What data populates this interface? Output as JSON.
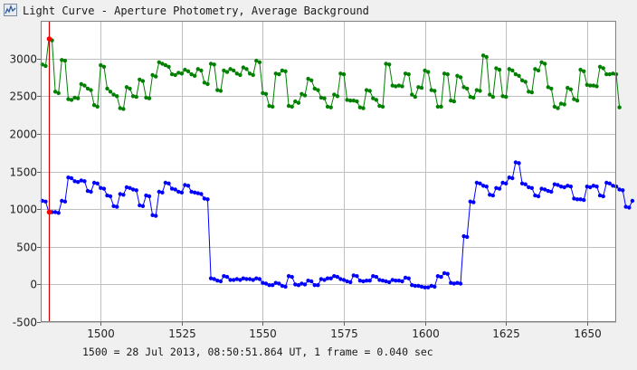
{
  "window": {
    "title": "Light Curve - Aperture Photometry, Average Background",
    "icon": "light-curve-app-icon"
  },
  "footer": {
    "note": "1500 = 28 Jul 2013, 08:50:51.864 UT, 1 frame = 0.040 sec"
  },
  "colors": {
    "background": "#f0f0f0",
    "plot_background": "#ffffff",
    "grid": "#c0c0c0",
    "series_top": "#008000",
    "series_bottom": "#0000ff",
    "cursor_line": "#cc0000",
    "cursor_marker": "#ff0000"
  },
  "chart_data": {
    "type": "line",
    "title": "Light Curve - Aperture Photometry, Average Background",
    "xlabel": "",
    "ylabel": "",
    "xlim": [
      1481.5,
      1659
    ],
    "ylim": [
      -500,
      3500
    ],
    "grid": true,
    "legend": "none",
    "x_ticks": [
      1500,
      1525,
      1550,
      1575,
      1600,
      1625,
      1650
    ],
    "y_ticks": [
      -500,
      0,
      500,
      1000,
      1500,
      2000,
      2500,
      3000
    ],
    "cursor": {
      "x": 1484,
      "values": [
        3260,
        960
      ]
    },
    "series": [
      {
        "color": "#008000",
        "x_start": 1482,
        "x_step": 1,
        "values": [
          2920,
          2900,
          3260,
          3240,
          2560,
          2540,
          2980,
          2970,
          2460,
          2450,
          2480,
          2470,
          2660,
          2640,
          2600,
          2580,
          2380,
          2360,
          2910,
          2890,
          2600,
          2560,
          2520,
          2500,
          2340,
          2330,
          2620,
          2600,
          2500,
          2490,
          2720,
          2700,
          2480,
          2470,
          2780,
          2760,
          2950,
          2930,
          2910,
          2890,
          2790,
          2780,
          2810,
          2800,
          2850,
          2830,
          2790,
          2770,
          2860,
          2840,
          2680,
          2660,
          2930,
          2920,
          2580,
          2570,
          2840,
          2820,
          2860,
          2840,
          2800,
          2780,
          2880,
          2860,
          2800,
          2780,
          2970,
          2950,
          2540,
          2530,
          2370,
          2360,
          2800,
          2790,
          2840,
          2830,
          2370,
          2360,
          2430,
          2410,
          2530,
          2510,
          2730,
          2710,
          2600,
          2580,
          2480,
          2470,
          2360,
          2350,
          2520,
          2500,
          2800,
          2790,
          2450,
          2440,
          2440,
          2430,
          2350,
          2340,
          2580,
          2570,
          2470,
          2450,
          2370,
          2360,
          2930,
          2920,
          2640,
          2630,
          2640,
          2630,
          2800,
          2790,
          2520,
          2490,
          2620,
          2610,
          2840,
          2820,
          2580,
          2570,
          2360,
          2360,
          2800,
          2790,
          2440,
          2430,
          2770,
          2750,
          2620,
          2600,
          2490,
          2480,
          2580,
          2570,
          3040,
          3020,
          2520,
          2490,
          2870,
          2850,
          2500,
          2490,
          2860,
          2840,
          2790,
          2770,
          2710,
          2690,
          2560,
          2550,
          2860,
          2840,
          2950,
          2930,
          2620,
          2600,
          2360,
          2340,
          2400,
          2390,
          2610,
          2590,
          2460,
          2440,
          2850,
          2830,
          2650,
          2640,
          2640,
          2630,
          2890,
          2870,
          2790,
          2790,
          2800,
          2790,
          2350
        ]
      },
      {
        "color": "#0000ff",
        "x_start": 1482,
        "x_step": 1,
        "values": [
          1110,
          1100,
          960,
          960,
          960,
          950,
          1110,
          1100,
          1420,
          1410,
          1370,
          1360,
          1380,
          1370,
          1240,
          1230,
          1350,
          1340,
          1280,
          1270,
          1180,
          1170,
          1040,
          1030,
          1200,
          1190,
          1290,
          1280,
          1260,
          1250,
          1050,
          1040,
          1180,
          1170,
          920,
          910,
          1230,
          1220,
          1350,
          1340,
          1270,
          1260,
          1230,
          1220,
          1320,
          1310,
          1230,
          1220,
          1210,
          1200,
          1140,
          1130,
          80,
          70,
          50,
          40,
          110,
          100,
          60,
          60,
          70,
          60,
          80,
          70,
          70,
          60,
          80,
          70,
          20,
          10,
          -10,
          -10,
          20,
          10,
          -20,
          -30,
          110,
          100,
          0,
          -10,
          10,
          0,
          50,
          40,
          -10,
          -10,
          70,
          60,
          80,
          80,
          110,
          100,
          70,
          60,
          40,
          30,
          120,
          110,
          50,
          40,
          50,
          50,
          110,
          100,
          60,
          50,
          40,
          30,
          60,
          50,
          50,
          40,
          90,
          80,
          -10,
          -20,
          -20,
          -30,
          -40,
          -40,
          -20,
          -30,
          110,
          100,
          150,
          140,
          20,
          10,
          20,
          10,
          640,
          630,
          1100,
          1090,
          1350,
          1340,
          1310,
          1300,
          1190,
          1180,
          1280,
          1270,
          1350,
          1340,
          1420,
          1410,
          1620,
          1610,
          1340,
          1330,
          1290,
          1280,
          1180,
          1170,
          1270,
          1260,
          1240,
          1230,
          1330,
          1320,
          1300,
          1290,
          1310,
          1300,
          1140,
          1130,
          1130,
          1120,
          1300,
          1290,
          1310,
          1300,
          1180,
          1170,
          1350,
          1340,
          1310,
          1300,
          1260,
          1250,
          1030,
          1020,
          1110
        ]
      }
    ]
  }
}
